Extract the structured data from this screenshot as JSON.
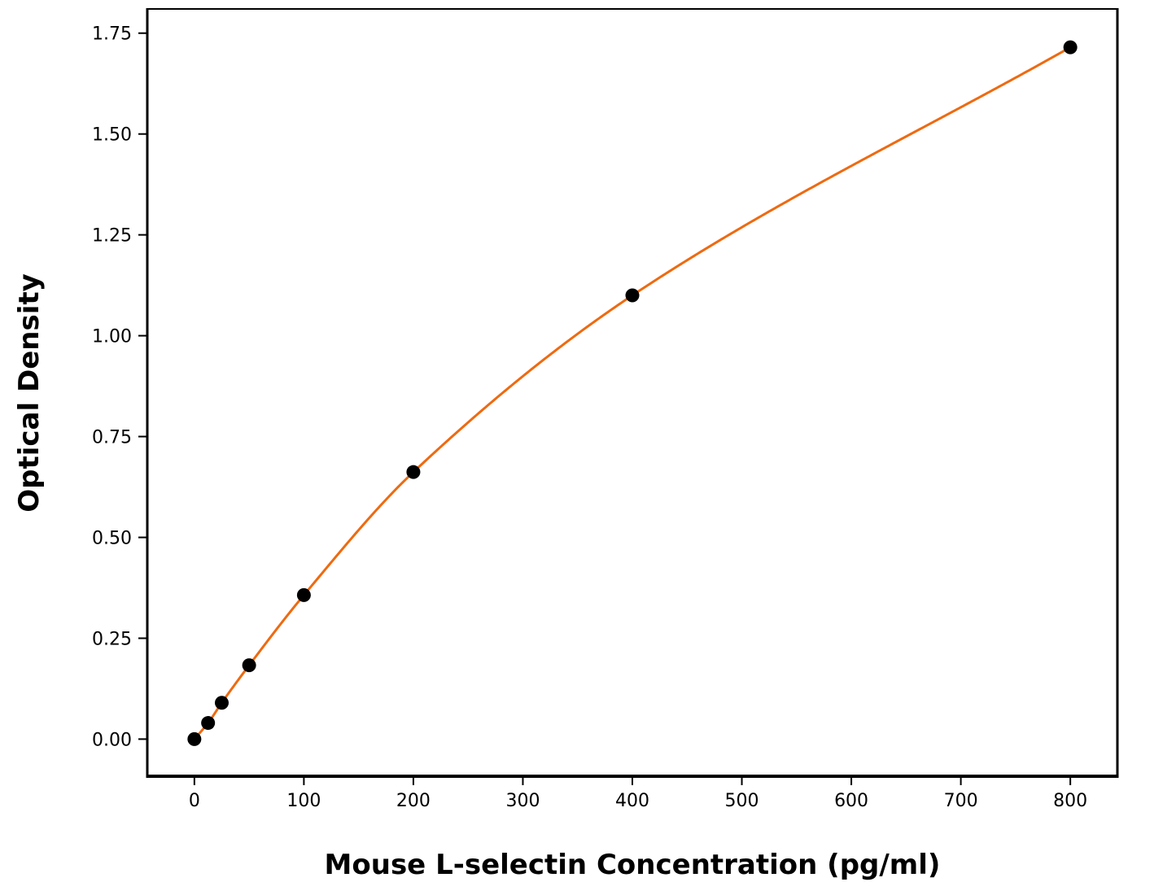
{
  "chart_data": {
    "type": "line",
    "title": "",
    "xlabel": "Mouse L-selectin Concentration (pg/ml)",
    "ylabel": "Optical Density",
    "xlim": [
      -43,
      843
    ],
    "ylim": [
      -0.092,
      1.81
    ],
    "x_ticks": [
      0,
      100,
      200,
      300,
      400,
      500,
      600,
      700,
      800
    ],
    "x_tick_labels": [
      "0",
      "100",
      "200",
      "300",
      "400",
      "500",
      "600",
      "700",
      "800"
    ],
    "y_ticks": [
      0.0,
      0.25,
      0.5,
      0.75,
      1.0,
      1.25,
      1.5,
      1.75
    ],
    "y_tick_labels": [
      "0.00",
      "0.25",
      "0.50",
      "0.75",
      "1.00",
      "1.25",
      "1.50",
      "1.75"
    ],
    "grid": false,
    "legend": "none",
    "series": [
      {
        "kind": "scatter",
        "x": [
          0,
          12.5,
          25,
          50,
          100,
          200,
          400,
          800
        ],
        "y": [
          0.0,
          0.04,
          0.09,
          0.183,
          0.357,
          0.662,
          1.1,
          1.715
        ],
        "color": "#000000"
      },
      {
        "kind": "fit-curve",
        "x_range": [
          0,
          800
        ],
        "color": "#ee6a10"
      }
    ]
  }
}
